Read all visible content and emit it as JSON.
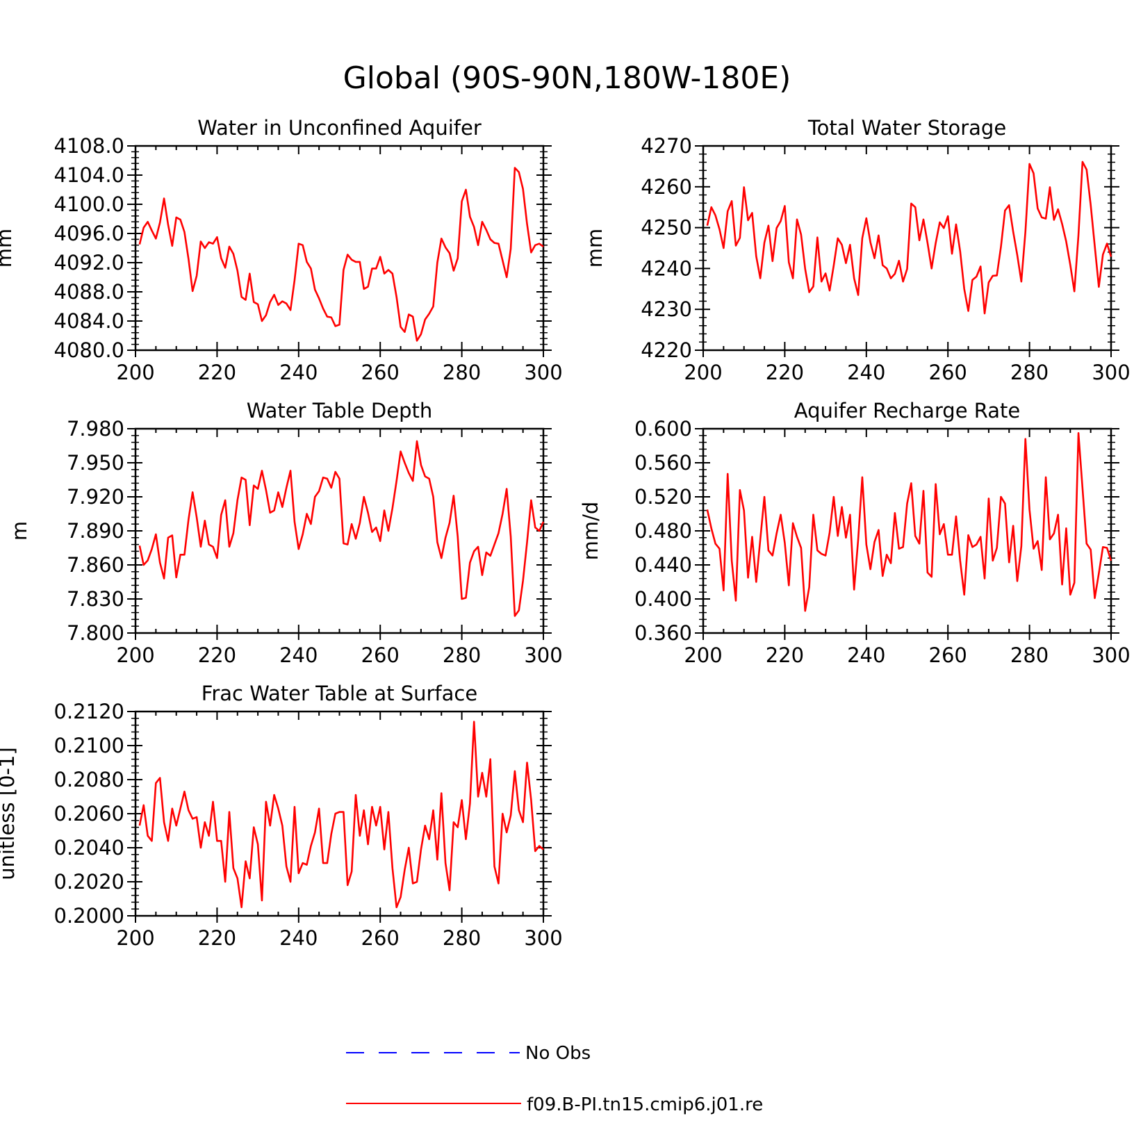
{
  "title": "Global (90S-90N,180W-180E)",
  "colors": {
    "model": "#ff0000",
    "obs": "#0000ff",
    "axis": "#000000"
  },
  "legend": [
    {
      "label": "No Obs",
      "style": "dashed",
      "color": "#0000ff"
    },
    {
      "label": "f09.B-PI.tn15.cmip6.j01.re",
      "style": "solid",
      "color": "#ff0000"
    }
  ],
  "chart_data": [
    {
      "type": "line",
      "title": "Water in Unconfined Aquifer",
      "ylabel": "mm",
      "xlim": [
        200,
        300
      ],
      "ylim": [
        4080,
        4108
      ],
      "xticks": [
        200,
        220,
        240,
        260,
        280,
        300
      ],
      "yticks": [
        4080,
        4084,
        4088,
        4092,
        4096,
        4100,
        4104,
        4108
      ],
      "ytick_labels": [
        "4080.0",
        "4084.0",
        "4088.0",
        "4092.0",
        "4096.0",
        "4100.0",
        "4104.0",
        "4108.0"
      ],
      "x_start": 201,
      "x_step": 1,
      "series": [
        {
          "values": [
            4094.5,
            4096.8,
            4097.6,
            4096.4,
            4095.3,
            4097.5,
            4100.8,
            4097.2,
            4094.3,
            4098.2,
            4097.9,
            4096.2,
            4092.5,
            4088.1,
            4090.2,
            4094.9,
            4094.0,
            4094.8,
            4094.6,
            4095.5,
            4092.6,
            4091.3,
            4094.2,
            4093.2,
            4090.9,
            4087.3,
            4086.9,
            4090.5,
            4086.6,
            4086.3,
            4084.0,
            4084.8,
            4086.6,
            4087.6,
            4086.2,
            4086.7,
            4086.4,
            4085.5,
            4089.6,
            4094.6,
            4094.4,
            4092.1,
            4091.2,
            4088.3,
            4087.1,
            4085.7,
            4084.6,
            4084.5,
            4083.3,
            4083.5,
            4091.0,
            4093.1,
            4092.4,
            4092.1,
            4092.1,
            4088.4,
            4088.7,
            4091.2,
            4091.2,
            4092.8,
            4090.5,
            4091.0,
            4090.5,
            4087.3,
            4083.2,
            4082.5,
            4084.9,
            4084.6,
            4081.3,
            4082.2,
            4084.2,
            4085.0,
            4086.0,
            4092.0,
            4095.3,
            4094.1,
            4093.3,
            4090.9,
            4092.6,
            4100.4,
            4102.0,
            4098.3,
            4096.9,
            4094.4,
            4097.6,
            4096.5,
            4095.2,
            4094.7,
            4094.6,
            4092.3,
            4090.0,
            4093.9,
            4105.0,
            4104.4,
            4102.1,
            4097.3,
            4093.4,
            4094.4,
            4094.6,
            4094.2
          ]
        }
      ]
    },
    {
      "type": "line",
      "title": "Total Water Storage",
      "ylabel": "mm",
      "xlim": [
        200,
        300
      ],
      "ylim": [
        4220,
        4270
      ],
      "xticks": [
        200,
        220,
        240,
        260,
        280,
        300
      ],
      "yticks": [
        4220,
        4230,
        4240,
        4250,
        4260,
        4270
      ],
      "ytick_labels": [
        "4220",
        "4230",
        "4240",
        "4250",
        "4260",
        "4270"
      ],
      "x_start": 201,
      "x_step": 1,
      "series": [
        {
          "values": [
            4250.5,
            4255.0,
            4253.0,
            4249.6,
            4245.0,
            4254.0,
            4256.5,
            4245.6,
            4247.5,
            4259.9,
            4251.8,
            4253.6,
            4243.0,
            4237.6,
            4246.3,
            4250.5,
            4241.8,
            4249.9,
            4251.6,
            4255.3,
            4241.5,
            4237.6,
            4252.0,
            4248.3,
            4239.9,
            4234.2,
            4235.6,
            4247.6,
            4236.8,
            4238.8,
            4234.6,
            4240.7,
            4247.4,
            4245.8,
            4241.3,
            4245.8,
            4237.6,
            4233.5,
            4247.4,
            4252.3,
            4246.4,
            4242.5,
            4248.1,
            4240.8,
            4240.0,
            4237.6,
            4238.7,
            4241.9,
            4236.8,
            4239.9,
            4255.9,
            4255.0,
            4246.9,
            4252.0,
            4246.3,
            4240.0,
            4246.2,
            4251.3,
            4249.9,
            4252.8,
            4243.6,
            4250.8,
            4244.2,
            4235.0,
            4229.6,
            4237.2,
            4238.0,
            4240.5,
            4229.0,
            4236.6,
            4238.2,
            4238.3,
            4245.3,
            4254.2,
            4255.5,
            4249.0,
            4243.3,
            4236.8,
            4249.0,
            4265.6,
            4263.3,
            4254.7,
            4252.5,
            4252.2,
            4259.9,
            4251.9,
            4254.5,
            4250.9,
            4246.6,
            4240.9,
            4234.4,
            4248.1,
            4266.1,
            4264.2,
            4255.6,
            4245.5,
            4235.5,
            4243.4,
            4246.1,
            4242.9
          ]
        }
      ]
    },
    {
      "type": "line",
      "title": "Water Table Depth",
      "ylabel": "m",
      "xlim": [
        200,
        300
      ],
      "ylim": [
        7.8,
        7.98
      ],
      "xticks": [
        200,
        220,
        240,
        260,
        280,
        300
      ],
      "yticks": [
        7.8,
        7.83,
        7.86,
        7.89,
        7.92,
        7.95,
        7.98
      ],
      "ytick_labels": [
        "7.800",
        "7.830",
        "7.860",
        "7.890",
        "7.920",
        "7.950",
        "7.980"
      ],
      "x_start": 201,
      "x_step": 1,
      "series": [
        {
          "values": [
            7.877,
            7.86,
            7.864,
            7.874,
            7.887,
            7.862,
            7.848,
            7.884,
            7.886,
            7.849,
            7.869,
            7.869,
            7.9,
            7.924,
            7.902,
            7.876,
            7.899,
            7.878,
            7.876,
            7.866,
            7.904,
            7.917,
            7.876,
            7.888,
            7.917,
            7.937,
            7.935,
            7.895,
            7.93,
            7.927,
            7.943,
            7.926,
            7.906,
            7.908,
            7.924,
            7.911,
            7.928,
            7.943,
            7.898,
            7.874,
            7.887,
            7.905,
            7.896,
            7.92,
            7.925,
            7.937,
            7.936,
            7.928,
            7.942,
            7.936,
            7.879,
            7.878,
            7.896,
            7.883,
            7.897,
            7.92,
            7.906,
            7.889,
            7.893,
            7.881,
            7.908,
            7.89,
            7.91,
            7.934,
            7.96,
            7.95,
            7.941,
            7.934,
            7.969,
            7.948,
            7.938,
            7.936,
            7.92,
            7.88,
            7.866,
            7.884,
            7.897,
            7.921,
            7.885,
            7.83,
            7.831,
            7.862,
            7.872,
            7.876,
            7.851,
            7.871,
            7.868,
            7.878,
            7.888,
            7.905,
            7.927,
            7.885,
            7.815,
            7.82,
            7.846,
            7.88,
            7.917,
            7.893,
            7.89,
            7.898
          ]
        }
      ]
    },
    {
      "type": "line",
      "title": "Aquifer Recharge Rate",
      "ylabel": "mm/d",
      "xlim": [
        200,
        300
      ],
      "ylim": [
        0.36,
        0.6
      ],
      "xticks": [
        200,
        220,
        240,
        260,
        280,
        300
      ],
      "yticks": [
        0.36,
        0.4,
        0.44,
        0.48,
        0.52,
        0.56,
        0.6
      ],
      "ytick_labels": [
        "0.360",
        "0.400",
        "0.440",
        "0.480",
        "0.520",
        "0.560",
        "0.600"
      ],
      "x_start": 201,
      "x_step": 1,
      "series": [
        {
          "values": [
            0.505,
            0.483,
            0.465,
            0.459,
            0.41,
            0.547,
            0.445,
            0.398,
            0.528,
            0.504,
            0.425,
            0.473,
            0.42,
            0.47,
            0.52,
            0.457,
            0.451,
            0.477,
            0.499,
            0.466,
            0.416,
            0.489,
            0.473,
            0.46,
            0.386,
            0.414,
            0.499,
            0.457,
            0.453,
            0.451,
            0.478,
            0.52,
            0.474,
            0.508,
            0.472,
            0.499,
            0.411,
            0.47,
            0.543,
            0.464,
            0.435,
            0.467,
            0.481,
            0.427,
            0.452,
            0.442,
            0.501,
            0.459,
            0.461,
            0.512,
            0.536,
            0.474,
            0.465,
            0.527,
            0.431,
            0.426,
            0.535,
            0.476,
            0.488,
            0.452,
            0.452,
            0.497,
            0.445,
            0.405,
            0.475,
            0.461,
            0.464,
            0.473,
            0.424,
            0.518,
            0.445,
            0.46,
            0.52,
            0.512,
            0.443,
            0.486,
            0.421,
            0.462,
            0.588,
            0.505,
            0.459,
            0.468,
            0.434,
            0.543,
            0.47,
            0.477,
            0.499,
            0.417,
            0.483,
            0.405,
            0.419,
            0.595,
            0.53,
            0.465,
            0.458,
            0.401,
            0.43,
            0.461,
            0.46,
            0.445
          ]
        }
      ]
    },
    {
      "type": "line",
      "title": "Frac Water Table at Surface",
      "ylabel": "unitless [0-1]",
      "xlim": [
        200,
        300
      ],
      "ylim": [
        0.2,
        0.212
      ],
      "xticks": [
        200,
        220,
        240,
        260,
        280,
        300
      ],
      "yticks": [
        0.2,
        0.202,
        0.204,
        0.206,
        0.208,
        0.21,
        0.212
      ],
      "ytick_labels": [
        "0.2000",
        "0.2020",
        "0.2040",
        "0.2060",
        "0.2080",
        "0.2100",
        "0.2120"
      ],
      "x_start": 201,
      "x_step": 1,
      "series": [
        {
          "values": [
            0.2053,
            0.2065,
            0.2047,
            0.2044,
            0.2078,
            0.2081,
            0.2055,
            0.2044,
            0.2063,
            0.2053,
            0.2063,
            0.2073,
            0.2062,
            0.2057,
            0.2058,
            0.204,
            0.2055,
            0.2047,
            0.2067,
            0.2044,
            0.2044,
            0.202,
            0.2061,
            0.2028,
            0.2022,
            0.2005,
            0.2032,
            0.2022,
            0.2052,
            0.2042,
            0.2009,
            0.2067,
            0.2053,
            0.2071,
            0.2063,
            0.2053,
            0.2029,
            0.202,
            0.2064,
            0.2025,
            0.2031,
            0.203,
            0.2041,
            0.2049,
            0.2063,
            0.2031,
            0.2031,
            0.2048,
            0.206,
            0.2061,
            0.2061,
            0.2018,
            0.2026,
            0.2071,
            0.2047,
            0.2062,
            0.2042,
            0.2064,
            0.2053,
            0.2064,
            0.2039,
            0.2061,
            0.2028,
            0.2005,
            0.2011,
            0.2027,
            0.204,
            0.2019,
            0.202,
            0.2039,
            0.2053,
            0.2045,
            0.2062,
            0.2033,
            0.2072,
            0.2031,
            0.2015,
            0.2055,
            0.2052,
            0.2068,
            0.2045,
            0.2066,
            0.2114,
            0.207,
            0.2084,
            0.207,
            0.2092,
            0.2029,
            0.2019,
            0.206,
            0.2049,
            0.2059,
            0.2085,
            0.2062,
            0.2055,
            0.209,
            0.2068,
            0.2038,
            0.2041,
            0.2039
          ]
        }
      ]
    }
  ]
}
